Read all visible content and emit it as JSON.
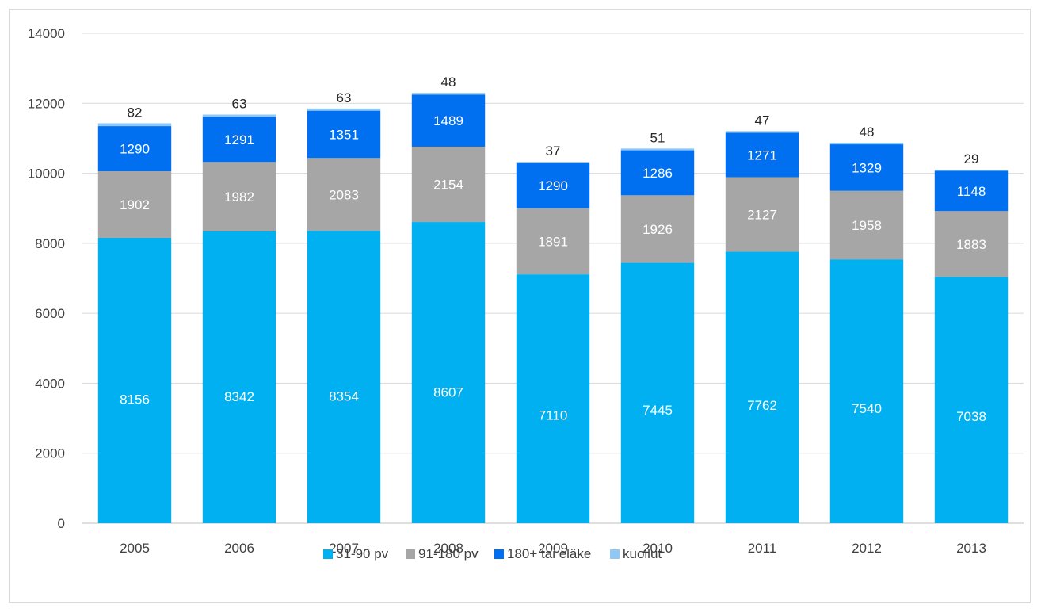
{
  "chart_data": {
    "type": "bar",
    "stacked": true,
    "categories": [
      "2005",
      "2006",
      "2007",
      "2008",
      "2009",
      "2010",
      "2011",
      "2012",
      "2013"
    ],
    "series": [
      {
        "name": "31-90 pv",
        "color": "#00b0f0",
        "label_color": "#ffffff",
        "values": [
          8156,
          8342,
          8354,
          8607,
          7110,
          7445,
          7762,
          7540,
          7038
        ]
      },
      {
        "name": "91-180 pv",
        "color": "#a6a6a6",
        "label_color": "#ffffff",
        "values": [
          1902,
          1982,
          2083,
          2154,
          1891,
          1926,
          2127,
          1958,
          1883
        ]
      },
      {
        "name": "180+ tai eläke",
        "color": "#0070f0",
        "label_color": "#ffffff",
        "values": [
          1290,
          1291,
          1351,
          1489,
          1290,
          1286,
          1271,
          1329,
          1148
        ]
      },
      {
        "name": "kuollut",
        "color": "#8fc8f5",
        "label_color": "#262626",
        "values": [
          82,
          63,
          63,
          48,
          37,
          51,
          47,
          48,
          29
        ]
      }
    ],
    "ylim": [
      0,
      14000
    ],
    "yticks": [
      "0",
      "2000",
      "4000",
      "6000",
      "8000",
      "10000",
      "12000",
      "14000"
    ],
    "grid": true,
    "legend": "bottom"
  }
}
